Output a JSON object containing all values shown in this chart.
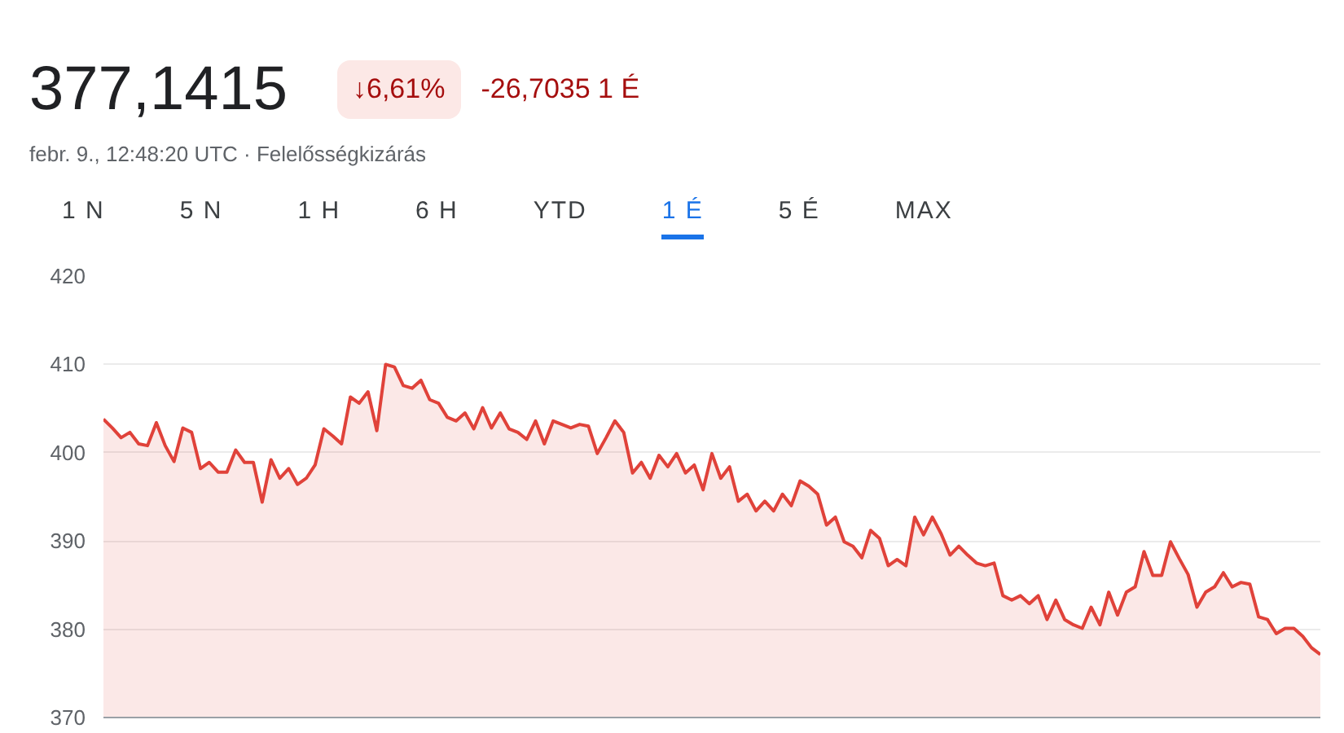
{
  "chart_data": {
    "type": "area",
    "title": "377,1415",
    "subtitle": "febr. 9., 12:48:20 UTC · Felelősségkizárás",
    "annotations": [
      "↓6,61%",
      "-26,7035 1 É",
      "1 N",
      "5 N",
      "1 H",
      "6 H",
      "YTD",
      "1 É",
      "5 É",
      "MAX"
    ],
    "categories": [
      null,
      null,
      null,
      null,
      null,
      null,
      null,
      null,
      null,
      null,
      null,
      null,
      null,
      null,
      null,
      null,
      null,
      null,
      null,
      null,
      null,
      null,
      null,
      null,
      null,
      null,
      null,
      null,
      null,
      null,
      null,
      null,
      null,
      null,
      null,
      null,
      null,
      null,
      null,
      null,
      null,
      null,
      null,
      null,
      null,
      null,
      null,
      null,
      null,
      null,
      null,
      null,
      null,
      null,
      null,
      null,
      null,
      null,
      null,
      null,
      null,
      null,
      null,
      null,
      null,
      null,
      null,
      null,
      null,
      null,
      null,
      null,
      null,
      null,
      null,
      null,
      null,
      null,
      null,
      null,
      null,
      null,
      null,
      null,
      null,
      null,
      null,
      null,
      null,
      null,
      null,
      null,
      null,
      null,
      null,
      null,
      null,
      null,
      null,
      null,
      null,
      null,
      null,
      null,
      null,
      null,
      null,
      null,
      null,
      null,
      null,
      null,
      null,
      null,
      null,
      null,
      null,
      null,
      null,
      null,
      null,
      null,
      null,
      null,
      null,
      null,
      null,
      null,
      null,
      null,
      null,
      null,
      null,
      null,
      null,
      null,
      null,
      null,
      null
    ],
    "series": [
      {
        "color": "#e0423a",
        "values": [
          403.8,
          402.8,
          401.7,
          402.3,
          401,
          400.8,
          403.4,
          400.8,
          399,
          402.8,
          402.3,
          398.2,
          398.9,
          397.8,
          397.8,
          400.3,
          398.9,
          398.9,
          394.4,
          399.2,
          397.1,
          398.2,
          396.4,
          397.1,
          398.6,
          402.7,
          401.9,
          401,
          406.3,
          405.6,
          406.9,
          402.5,
          410,
          409.7,
          407.6,
          407.3,
          408.2,
          406,
          405.6,
          404,
          403.6,
          404.5,
          402.7,
          405.1,
          402.8,
          404.5,
          402.7,
          402.3,
          401.5,
          403.6,
          401,
          403.6,
          403.2,
          402.8,
          403.2,
          403,
          399.9,
          401.7,
          403.6,
          402.3,
          397.7,
          398.9,
          397.1,
          399.7,
          398.4,
          399.9,
          397.7,
          398.6,
          395.8,
          399.9,
          397.1,
          398.4,
          394.5,
          395.3,
          393.4,
          394.5,
          393.4,
          395.3,
          394,
          396.8,
          396.2,
          395.3,
          391.8,
          392.7,
          389.9,
          389.4,
          388.1,
          391.2,
          390.3,
          387.2,
          387.9,
          387.2,
          392.7,
          390.7,
          392.7,
          390.8,
          388.4,
          389.4,
          388.4,
          387.5,
          387.2,
          387.5,
          383.8,
          383.3,
          383.8,
          382.9,
          383.8,
          381.1,
          383.3,
          381.1,
          380.5,
          380.1,
          382.5,
          380.5,
          384.2,
          381.6,
          384.2,
          384.8,
          388.8,
          386.1,
          386.1,
          389.9,
          388,
          386.2,
          382.5,
          384.2,
          384.8,
          386.4,
          384.8,
          385.3,
          385.1,
          381.4,
          381.1,
          379.5,
          380.1,
          380.1,
          379.2,
          377.9,
          377.1415
        ]
      }
    ],
    "ylim": [
      370,
      420
    ],
    "yticks": [
      370,
      380,
      390,
      400,
      410,
      420
    ],
    "grid": "y"
  }
}
